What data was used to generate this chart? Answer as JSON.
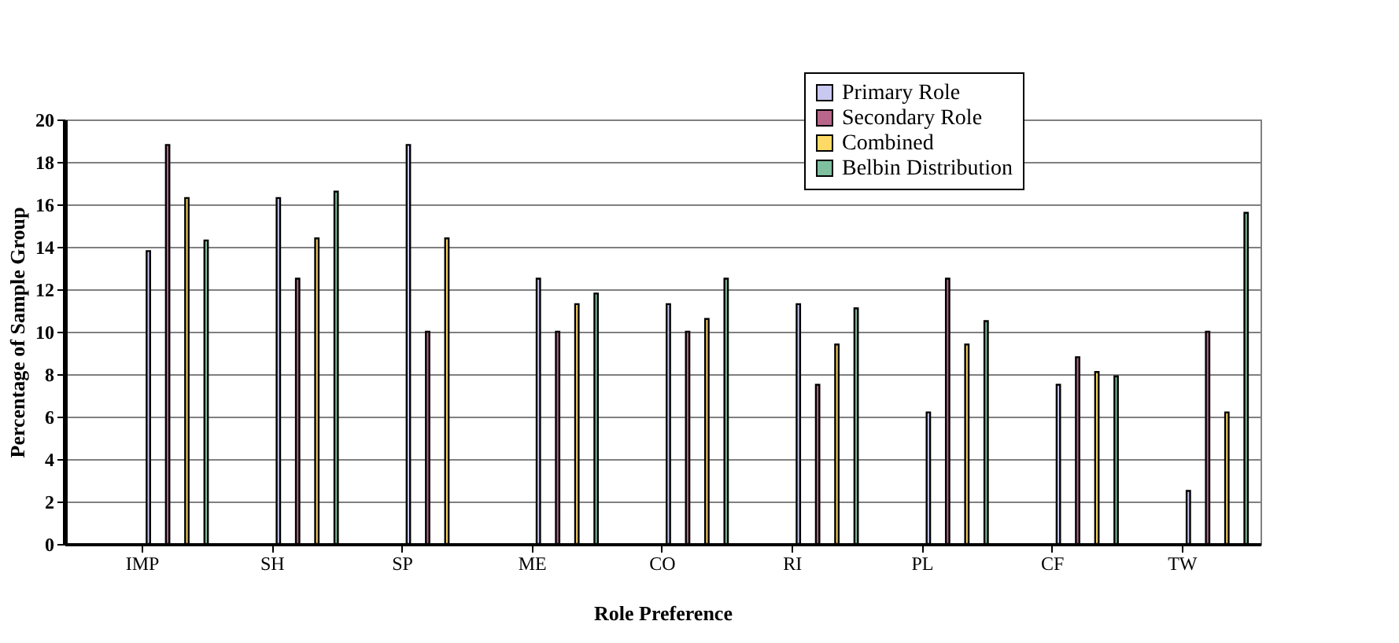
{
  "chart_data": {
    "type": "bar",
    "xlabel": "Role Preference",
    "ylabel": "Percentage of Sample Group",
    "categories": [
      "IMP",
      "SH",
      "SP",
      "ME",
      "CO",
      "RI",
      "PL",
      "CF",
      "TW"
    ],
    "series": [
      {
        "name": "Primary Role",
        "color": "#c8c8f0",
        "values": [
          13.8,
          16.3,
          18.8,
          12.5,
          11.3,
          11.3,
          6.2,
          7.5,
          2.5
        ]
      },
      {
        "name": "Secondary Role",
        "color": "#b8668a",
        "values": [
          18.8,
          12.5,
          10,
          10,
          10,
          7.5,
          12.5,
          8.8,
          10
        ]
      },
      {
        "name": "Combined",
        "color": "#ffd966",
        "values": [
          16.3,
          14.4,
          14.4,
          11.3,
          10.6,
          9.4,
          9.4,
          8.1,
          6.2
        ]
      },
      {
        "name": "Belbin Distribution",
        "color": "#7fbf9f",
        "values": [
          14.3,
          16.6,
          null,
          11.8,
          12.5,
          11.1,
          10.5,
          7.9,
          15.6
        ]
      }
    ],
    "ylim": [
      0,
      20
    ],
    "yticks": [
      0,
      2,
      4,
      6,
      8,
      10,
      12,
      14,
      16,
      18,
      20
    ],
    "grid": "y",
    "legend": "top right"
  }
}
